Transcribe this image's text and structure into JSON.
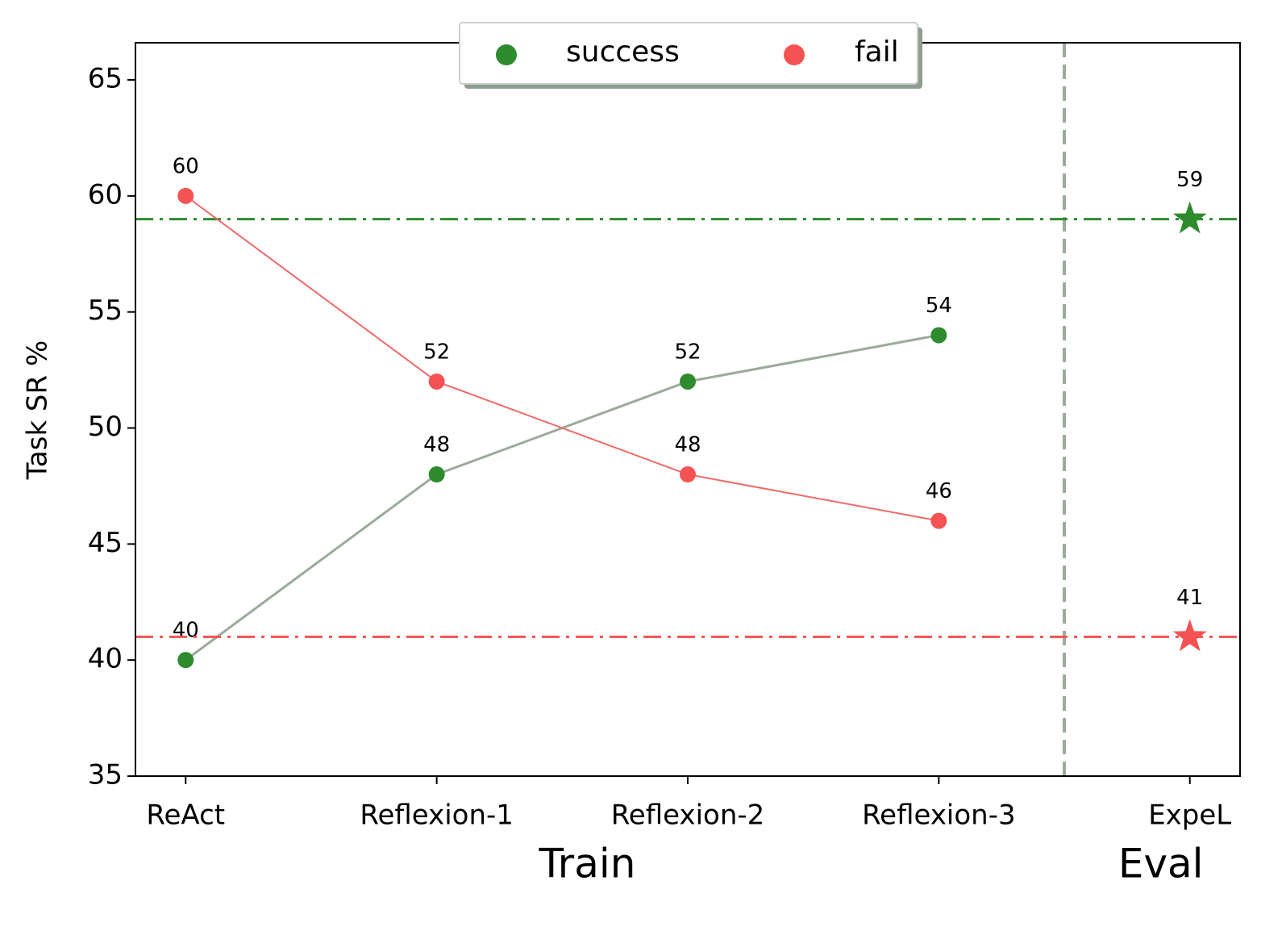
{
  "chart_data": {
    "type": "line",
    "y_label": "Task SR %",
    "categories": [
      "ReAct",
      "Reflexion-1",
      "Reflexion-2",
      "Reflexion-3",
      "ExpeL"
    ],
    "group_labels": [
      "Train",
      "Eval"
    ],
    "divider_x": 3.5,
    "xlim": [
      -0.2,
      4.2
    ],
    "ylim": [
      35,
      66.6
    ],
    "yticks": [
      35,
      40,
      45,
      50,
      55,
      60,
      65
    ],
    "legend": "upper center",
    "series": [
      {
        "name": "success",
        "color": "#2e8b2e",
        "line_color": "#9aab9a",
        "values": [
          40,
          48,
          52,
          54,
          null
        ],
        "eval_value": 59
      },
      {
        "name": "fail",
        "color": "#f55353",
        "line_color": "#f06a6a",
        "values": [
          60,
          52,
          48,
          46,
          null
        ],
        "eval_value": 41
      }
    ]
  }
}
